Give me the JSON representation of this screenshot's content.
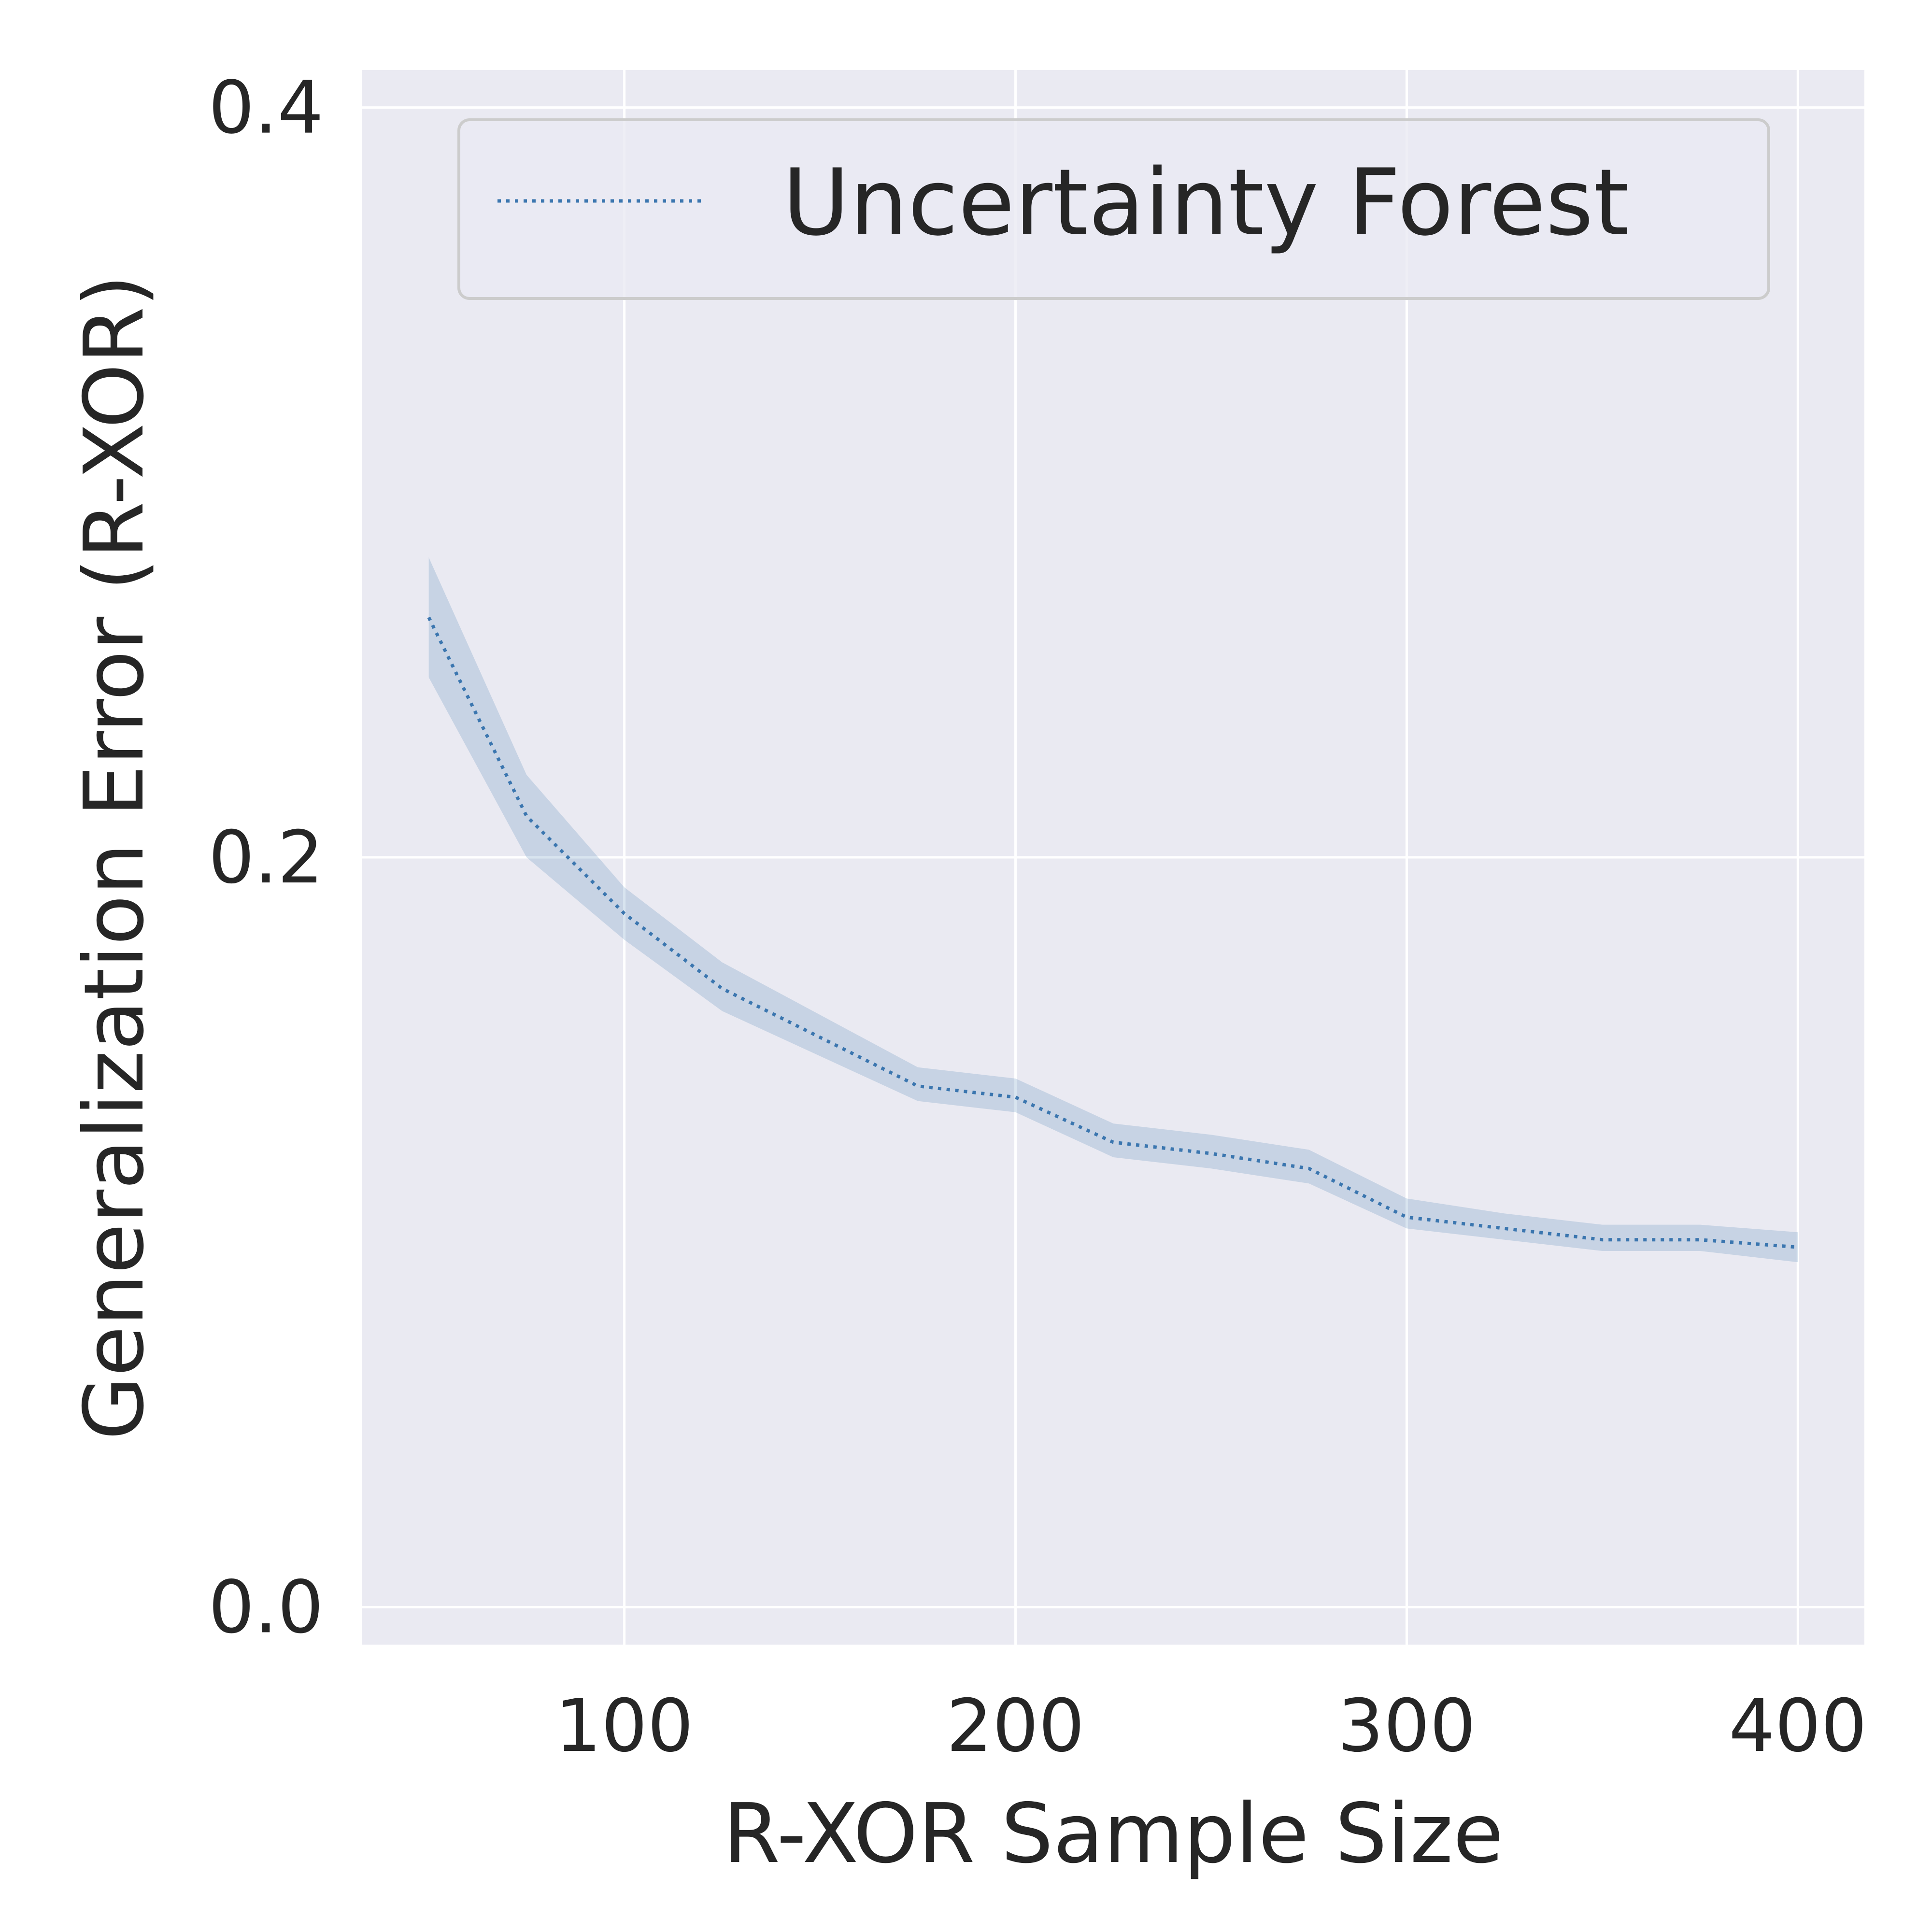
{
  "chart_data": {
    "type": "line",
    "title": "",
    "xlabel": "R-XOR Sample Size",
    "ylabel": "Generalization Error (R-XOR)",
    "xlim": [
      33,
      417
    ],
    "ylim": [
      -0.01,
      0.41
    ],
    "xticks": [
      100,
      200,
      300,
      400
    ],
    "yticks": [
      0.0,
      0.2,
      0.4
    ],
    "xtick_labels": [
      "100",
      "200",
      "300",
      "400"
    ],
    "ytick_labels": [
      "0.0",
      "0.2",
      "0.4"
    ],
    "grid": true,
    "legend_position": "top-right",
    "series": [
      {
        "name": "Uncertainty Forest",
        "color": "#3b76af",
        "line_style": "dotted",
        "x": [
          50,
          75,
          100,
          125,
          150,
          175,
          200,
          225,
          250,
          275,
          300,
          325,
          350,
          375,
          400
        ],
        "y": [
          0.264,
          0.211,
          0.185,
          0.165,
          0.152,
          0.139,
          0.136,
          0.124,
          0.121,
          0.117,
          0.104,
          0.101,
          0.098,
          0.098,
          0.096
        ],
        "lower": [
          0.248,
          0.2,
          0.178,
          0.159,
          0.147,
          0.135,
          0.132,
          0.12,
          0.117,
          0.113,
          0.101,
          0.098,
          0.095,
          0.095,
          0.092
        ],
        "upper": [
          0.28,
          0.222,
          0.192,
          0.172,
          0.158,
          0.144,
          0.141,
          0.129,
          0.126,
          0.122,
          0.109,
          0.105,
          0.102,
          0.102,
          0.1
        ]
      }
    ]
  }
}
